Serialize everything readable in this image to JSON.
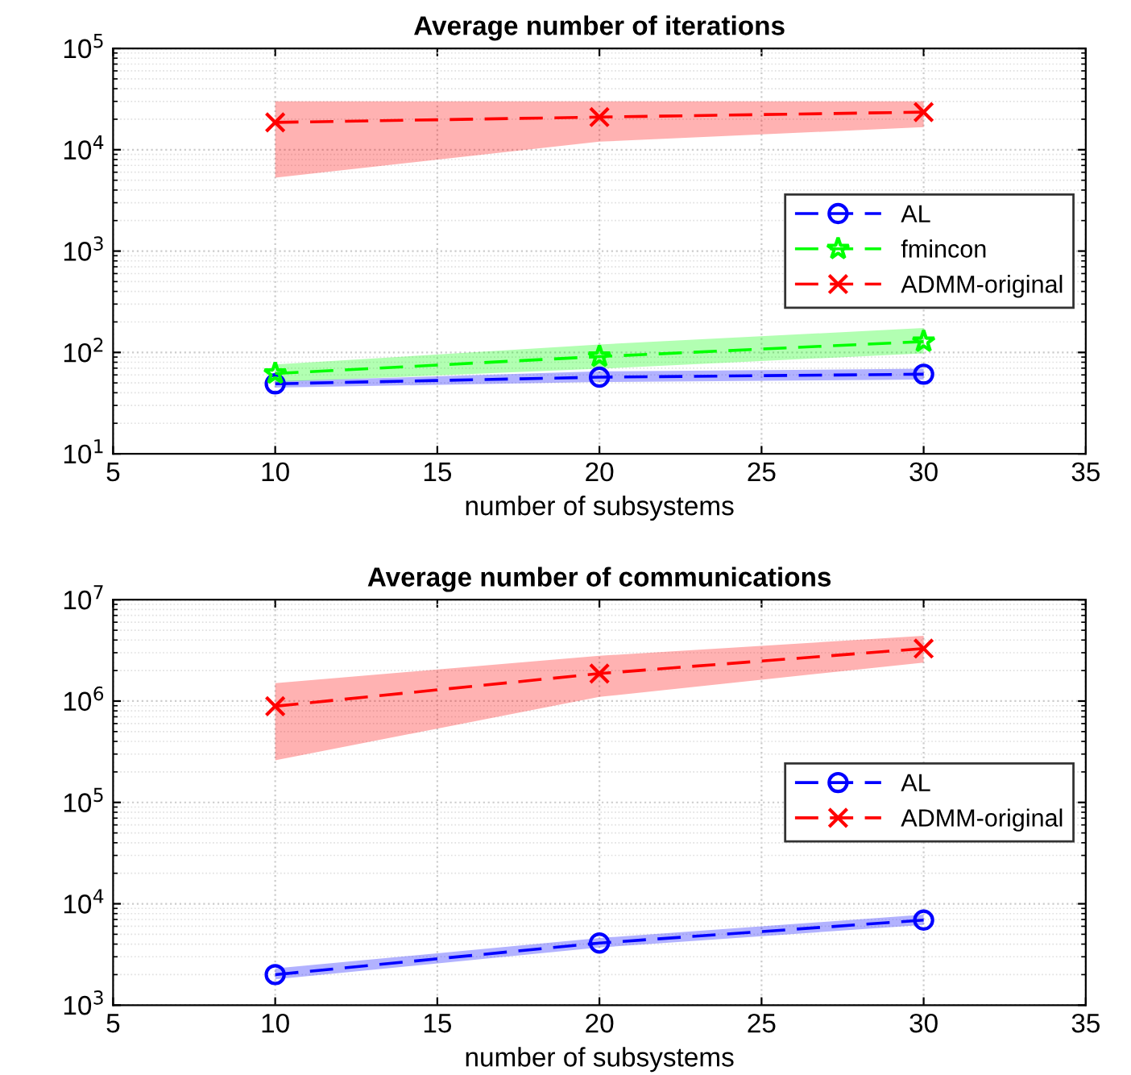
{
  "chart_data": [
    {
      "type": "line",
      "title": "Average number of iterations",
      "xlabel": "number of subsystems",
      "x": [
        10,
        20,
        30
      ],
      "log": "y",
      "xlim": [
        5,
        35
      ],
      "xticks": [
        5,
        10,
        15,
        20,
        25,
        30,
        35
      ],
      "ylim": [
        10,
        100000
      ],
      "yticks": [
        {
          "value": 10,
          "label": "10$^{1}$"
        },
        {
          "value": 100,
          "label": "10$^{2}$"
        },
        {
          "value": 1000,
          "label": "10$^{3}$"
        },
        {
          "value": 10000,
          "label": "10$^{4}$"
        },
        {
          "value": 100000,
          "label": "10$^{5}$"
        }
      ],
      "grid": true,
      "legend": "center right",
      "line_style": "dashed",
      "series": [
        {
          "name": "AL",
          "color": "#0000ff",
          "marker": "circle",
          "values": [
            49,
            57,
            61
          ],
          "lower": [
            45,
            51,
            54
          ],
          "upper": [
            52,
            65,
            69
          ]
        },
        {
          "name": "fmincon",
          "color": "#00ff00",
          "marker": "star",
          "values": [
            62,
            91,
            128
          ],
          "lower": [
            51,
            69,
            98
          ],
          "upper": [
            76,
            120,
            174
          ]
        },
        {
          "name": "ADMM-original",
          "color": "#ff0000",
          "marker": "cross",
          "values": [
            18600,
            21000,
            23500
          ],
          "lower": [
            5300,
            12000,
            16700
          ],
          "upper": [
            30000,
            30000,
            30000
          ]
        }
      ]
    },
    {
      "type": "line",
      "title": "Average number of communications",
      "xlabel": "number of subsystems",
      "x": [
        10,
        20,
        30
      ],
      "log": "y",
      "xlim": [
        5,
        35
      ],
      "xticks": [
        5,
        10,
        15,
        20,
        25,
        30,
        35
      ],
      "ylim": [
        1000,
        10000000
      ],
      "yticks": [
        {
          "value": 1000,
          "label": "10$^{3}$"
        },
        {
          "value": 10000,
          "label": "10$^{4}$"
        },
        {
          "value": 100000,
          "label": "10$^{5}$"
        },
        {
          "value": 1000000,
          "label": "10$^{6}$"
        },
        {
          "value": 10000000,
          "label": "10$^{7}$"
        }
      ],
      "grid": true,
      "legend": "center right",
      "line_style": "dashed",
      "series": [
        {
          "name": "AL",
          "color": "#0000ff",
          "marker": "circle",
          "values": [
            2000,
            4100,
            6900
          ],
          "lower": [
            1800,
            3700,
            6200
          ],
          "upper": [
            2300,
            4600,
            7800
          ]
        },
        {
          "name": "ADMM-original",
          "color": "#ff0000",
          "marker": "cross",
          "values": [
            890000,
            1870000,
            3300000
          ],
          "lower": [
            260000,
            1100000,
            2400000
          ],
          "upper": [
            1500000,
            2800000,
            4400000
          ]
        }
      ]
    }
  ]
}
